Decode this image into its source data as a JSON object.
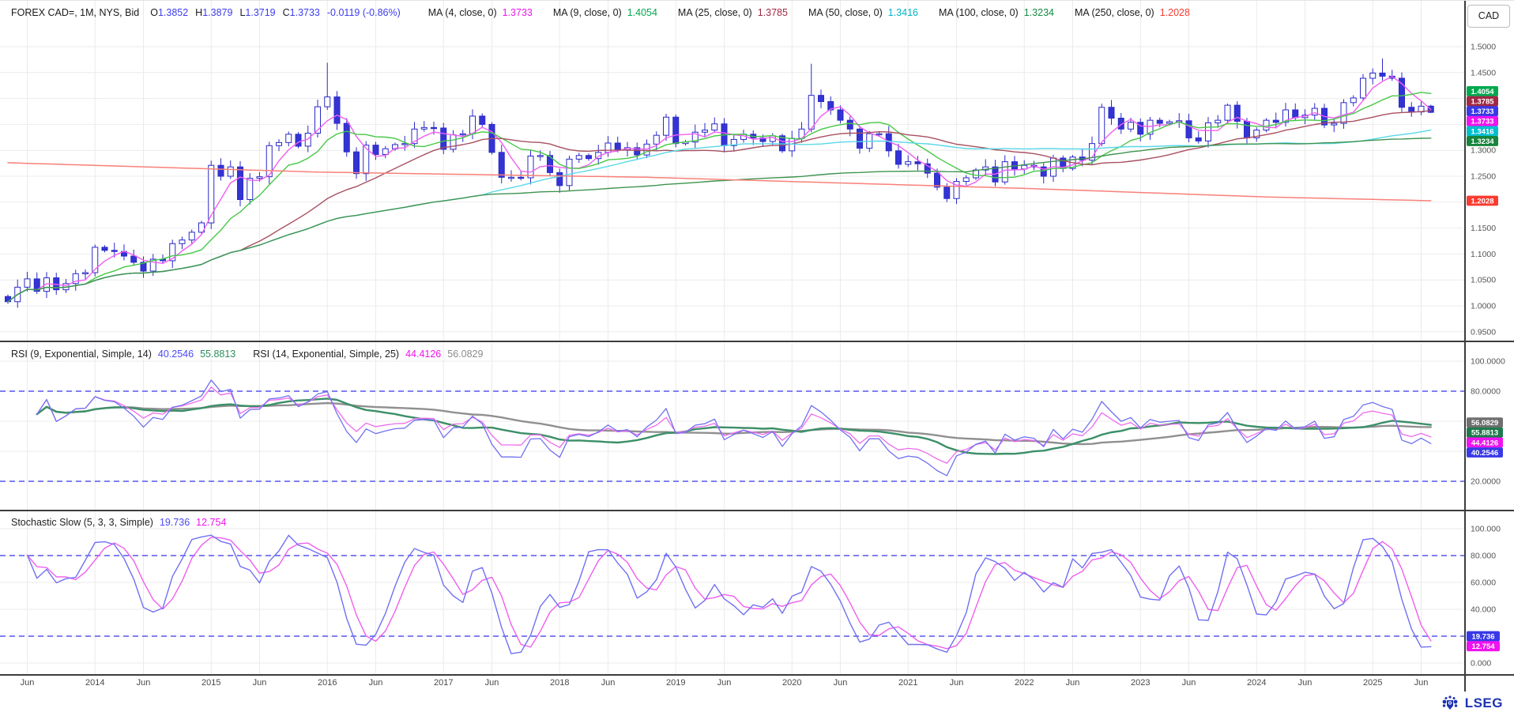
{
  "header": {
    "symbol": "FOREX CAD=, 1M, NYS, Bid",
    "ohlc": [
      {
        "label": "O",
        "value": "1.3852"
      },
      {
        "label": "H",
        "value": "1.3879"
      },
      {
        "label": "L",
        "value": "1.3719"
      },
      {
        "label": "C",
        "value": "1.3733"
      }
    ],
    "change": "-0.0119 (-0.86%)",
    "mas": [
      {
        "label": "MA (4, close, 0)",
        "value": "1.3733",
        "color": "#e819e8"
      },
      {
        "label": "MA (9, close, 0)",
        "value": "1.4054",
        "color": "#00a94f"
      },
      {
        "label": "MA (25, close, 0)",
        "value": "1.3785",
        "color": "#a02945"
      },
      {
        "label": "MA (50, close, 0)",
        "value": "1.3416",
        "color": "#00b5c5"
      },
      {
        "label": "MA (100, close, 0)",
        "value": "1.3234",
        "color": "#128a43"
      },
      {
        "label": "MA (250, close, 0)",
        "value": "1.2028",
        "color": "#fa3b30"
      }
    ],
    "instrument_tab": "CAD"
  },
  "rsi_header": {
    "label_1": "RSI (9, Exponential, Simple, 14)",
    "rsi9": "40.2546",
    "rsi9_color": "#4a4af2",
    "rsi9_ma": "55.8813",
    "rsi9_ma_color": "#2e8e5e",
    "label_2": "RSI (14, Exponential, Simple, 25)",
    "rsi14": "44.4126",
    "rsi14_color": "#ef13ef",
    "rsi14_ma": "56.0829",
    "rsi14_ma_color": "#8c8c8c"
  },
  "stoch_header": {
    "label": "Stochastic Slow (5, 3, 3, Simple)",
    "k": "19.736",
    "k_color": "#4a4af2",
    "d": "12.754",
    "d_color": "#ef13ef"
  },
  "footer": {
    "brand": "LSEG"
  },
  "colors": {
    "candle_up_fill": "#ffffff",
    "candle_down_fill": "#3434d4",
    "candle_stroke": "#2a2ac8",
    "grid": "#ebebeb",
    "level_line": "#5656ee",
    "axis_text": "#555555",
    "separator": "#3c3c3c"
  },
  "chart_data": {
    "type": "candlestick",
    "title": "FOREX CAD= monthly with MA overlays, RSI and Stochastic Slow",
    "symbol": "CAD=",
    "interval": "1M",
    "start_month": "2013-04",
    "first_open": 1.018,
    "closes": [
      1.008,
      1.036,
      1.052,
      1.028,
      1.054,
      1.031,
      1.043,
      1.062,
      1.064,
      1.113,
      1.107,
      1.105,
      1.096,
      1.084,
      1.067,
      1.09,
      1.087,
      1.12,
      1.127,
      1.142,
      1.16,
      1.271,
      1.25,
      1.268,
      1.205,
      1.246,
      1.249,
      1.309,
      1.315,
      1.331,
      1.308,
      1.333,
      1.384,
      1.403,
      1.352,
      1.297,
      1.255,
      1.31,
      1.292,
      1.303,
      1.311,
      1.313,
      1.341,
      1.344,
      1.343,
      1.302,
      1.33,
      1.332,
      1.366,
      1.35,
      1.296,
      1.248,
      1.248,
      1.247,
      1.289,
      1.29,
      1.257,
      1.232,
      1.283,
      1.29,
      1.284,
      1.296,
      1.314,
      1.301,
      1.305,
      1.291,
      1.312,
      1.329,
      1.364,
      1.313,
      1.316,
      1.335,
      1.339,
      1.351,
      1.309,
      1.321,
      1.331,
      1.324,
      1.317,
      1.328,
      1.299,
      1.323,
      1.341,
      1.406,
      1.394,
      1.378,
      1.358,
      1.341,
      1.304,
      1.332,
      1.332,
      1.299,
      1.273,
      1.278,
      1.274,
      1.256,
      1.229,
      1.207,
      1.24,
      1.247,
      1.262,
      1.268,
      1.239,
      1.278,
      1.264,
      1.271,
      1.268,
      1.25,
      1.285,
      1.265,
      1.287,
      1.281,
      1.313,
      1.383,
      1.362,
      1.341,
      1.354,
      1.331,
      1.358,
      1.352,
      1.355,
      1.357,
      1.324,
      1.318,
      1.353,
      1.358,
      1.387,
      1.356,
      1.324,
      1.339,
      1.358,
      1.354,
      1.378,
      1.363,
      1.368,
      1.381,
      1.349,
      1.352,
      1.392,
      1.401,
      1.439,
      1.449,
      1.443,
      1.439,
      1.383,
      1.374,
      1.3852,
      1.3733
    ],
    "wick_overrides": {
      "21": {
        "h": 1.28
      },
      "33": {
        "h": 1.469,
        "l": 1.378
      },
      "36": {
        "l": 1.245
      },
      "48": {
        "h": 1.379
      },
      "83": {
        "h": 1.467,
        "l": 1.335
      },
      "97": {
        "l": 1.2
      },
      "113": {
        "h": 1.39
      },
      "114": {
        "h": 1.397
      },
      "126": {
        "h": 1.39
      },
      "140": {
        "h": 1.447
      },
      "141": {
        "h": 1.458
      },
      "142": {
        "h": 1.477
      },
      "144": {
        "l": 1.374
      },
      "147": {
        "h": 1.3879,
        "l": 1.3719
      }
    },
    "last_candle": {
      "o": 1.3852,
      "h": 1.3879,
      "l": 1.3719,
      "c": 1.3733
    },
    "x_ticks": [
      {
        "idx": 2,
        "label": "Jun"
      },
      {
        "idx": 9,
        "label": "2014"
      },
      {
        "idx": 14,
        "label": "Jun"
      },
      {
        "idx": 21,
        "label": "2015"
      },
      {
        "idx": 26,
        "label": "Jun"
      },
      {
        "idx": 33,
        "label": "2016"
      },
      {
        "idx": 38,
        "label": "Jun"
      },
      {
        "idx": 45,
        "label": "2017"
      },
      {
        "idx": 50,
        "label": "Jun"
      },
      {
        "idx": 57,
        "label": "2018"
      },
      {
        "idx": 62,
        "label": "Jun"
      },
      {
        "idx": 69,
        "label": "2019"
      },
      {
        "idx": 74,
        "label": "Jun"
      },
      {
        "idx": 81,
        "label": "2020"
      },
      {
        "idx": 86,
        "label": "Jun"
      },
      {
        "idx": 93,
        "label": "2021"
      },
      {
        "idx": 98,
        "label": "Jun"
      },
      {
        "idx": 105,
        "label": "2022"
      },
      {
        "idx": 110,
        "label": "Jun"
      },
      {
        "idx": 117,
        "label": "2023"
      },
      {
        "idx": 122,
        "label": "Jun"
      },
      {
        "idx": 129,
        "label": "2024"
      },
      {
        "idx": 134,
        "label": "Jun"
      },
      {
        "idx": 141,
        "label": "2025"
      },
      {
        "idx": 146,
        "label": "Jun"
      }
    ],
    "price_axis": {
      "ticks": [
        {
          "label": "1.5000",
          "value": 1.5
        },
        {
          "label": "1.4500",
          "value": 1.45
        },
        {
          "label": "1.4000",
          "value": 1.4
        },
        {
          "label": "1.3500",
          "value": 1.35
        },
        {
          "label": "1.3000",
          "value": 1.3
        },
        {
          "label": "1.2500",
          "value": 1.25
        },
        {
          "label": "1.2000",
          "value": 1.2
        },
        {
          "label": "1.1500",
          "value": 1.15
        },
        {
          "label": "1.1000",
          "value": 1.1
        },
        {
          "label": "1.0500",
          "value": 1.05
        },
        {
          "label": "1.0000",
          "value": 1.0
        },
        {
          "label": "0.9500",
          "value": 0.95
        }
      ]
    },
    "price_badges": [
      {
        "text": "1.4054",
        "color": "#00a94f",
        "value": 1.4054
      },
      {
        "text": "1.3785",
        "color": "#a02945",
        "value": 1.3785
      },
      {
        "text": "1.3733",
        "color": "#3939e8",
        "value": 1.3733
      },
      {
        "text": "1.3733",
        "color": "#ef13ef",
        "value": 1.3733
      },
      {
        "text": "1.3416",
        "color": "#00bfcf",
        "value": 1.3416
      },
      {
        "text": "1.3234",
        "color": "#17843b",
        "value": 1.3234
      },
      {
        "text": "1.2028",
        "color": "#fa3b30",
        "value": 1.2028
      }
    ],
    "ma_overlays": [
      {
        "period": 4,
        "color": "#f25ef2"
      },
      {
        "period": 9,
        "color": "#46c846"
      },
      {
        "period": 25,
        "color": "#a85060"
      },
      {
        "period": 50,
        "color": "#58d8e8"
      },
      {
        "period": 100,
        "color": "#3f9350"
      }
    ],
    "ma250": {
      "period": 250,
      "color": "#f98078",
      "points": [
        [
          0,
          1.276
        ],
        [
          32,
          1.258
        ],
        [
          66,
          1.248
        ],
        [
          106,
          1.226
        ],
        [
          130,
          1.21
        ],
        [
          147,
          1.2028
        ]
      ]
    },
    "rsi_panel": {
      "params": {
        "rsi1": 9,
        "ma1": 14,
        "rsi2": 14,
        "ma2": 25
      },
      "levels": [
        80,
        20
      ],
      "ticks": [
        {
          "label": "100.0000",
          "value": 100
        },
        {
          "label": "80.0000",
          "value": 80
        },
        {
          "label": "60.0000",
          "value": 60
        },
        {
          "label": "40.0000",
          "value": 40
        },
        {
          "label": "20.0000",
          "value": 20
        }
      ],
      "badges": [
        {
          "text": "56.0829",
          "color": "#6f6f6f",
          "value": 56.0829
        },
        {
          "text": "55.8813",
          "color": "#1f7a4d",
          "value": 55.8813
        },
        {
          "text": "44.4126",
          "color": "#ef13ef",
          "value": 44.4126
        },
        {
          "text": "40.2546",
          "color": "#3939e8",
          "value": 40.2546
        }
      ],
      "line_colors": {
        "rsi9": "#7070f2",
        "rsi14": "#ee6bee",
        "rsi9_ma": "#3c8f68",
        "rsi14_ma": "#909090"
      }
    },
    "stoch_panel": {
      "params": {
        "k": 5,
        "slow": 3,
        "d": 3
      },
      "levels": [
        80,
        20
      ],
      "ticks": [
        {
          "label": "100.000",
          "value": 100
        },
        {
          "label": "80.000",
          "value": 80
        },
        {
          "label": "60.000",
          "value": 60
        },
        {
          "label": "40.000",
          "value": 40
        },
        {
          "label": "20.000",
          "value": 20
        },
        {
          "label": "0.000",
          "value": 0
        }
      ],
      "badges": [
        {
          "text": "19.736",
          "color": "#3939e8",
          "value": 19.736
        },
        {
          "text": "12.754",
          "color": "#ef13ef",
          "value": 12.754
        }
      ],
      "line_colors": {
        "k": "#7070f2",
        "d": "#ee5fee"
      }
    }
  }
}
